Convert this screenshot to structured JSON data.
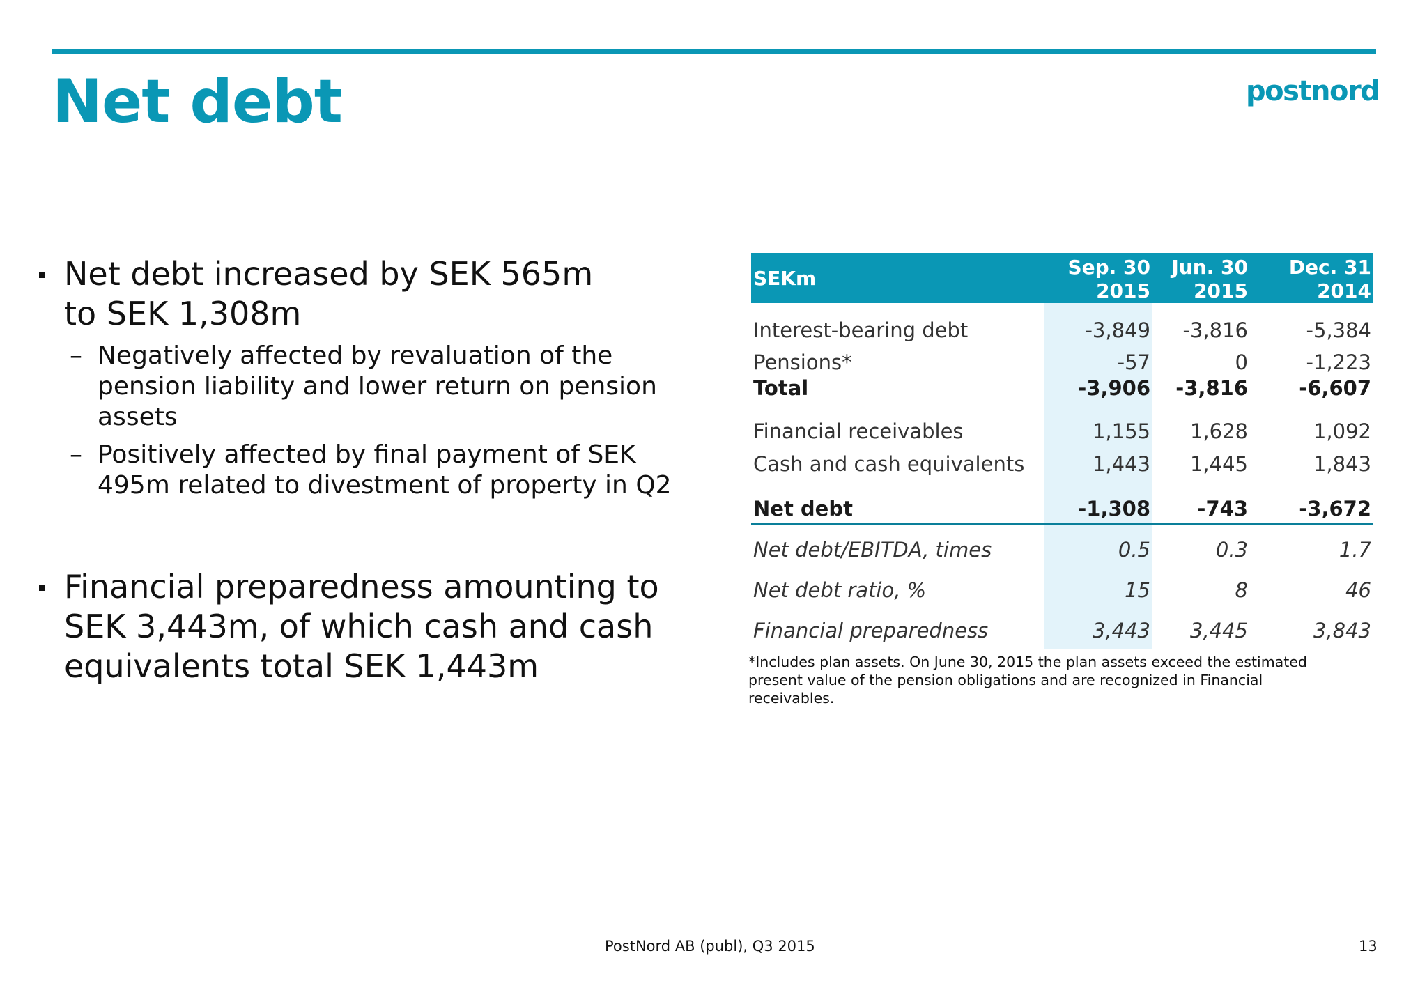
{
  "header": {
    "title": "Net debt",
    "logo_text": "postnord",
    "accent_color": "#0a97b5"
  },
  "bullets": [
    {
      "text": "Net debt increased by SEK 565m to SEK 1,308m",
      "line1": "Net debt increased by SEK 565m",
      "line2": "to SEK 1,308m",
      "sub": [
        {
          "line1": "Negatively affected by revaluation of the",
          "line2": "pension liability and lower return on pension",
          "line3": "assets"
        },
        {
          "line1": "Positively affected by final payment of SEK",
          "line2": "495m related to divestment of property in Q2"
        }
      ]
    },
    {
      "line1": "Financial preparedness amounting to",
      "line2": "SEK 3,443m, of which cash and cash",
      "line3": "equivalents total SEK 1,443m"
    }
  ],
  "table": {
    "unit_label": "SEKm",
    "columns": [
      {
        "line1": "Sep. 30",
        "line2": "2015"
      },
      {
        "line1": "Jun. 30",
        "line2": "2015"
      },
      {
        "line1": "Dec. 31",
        "line2": "2014"
      }
    ],
    "rows": [
      {
        "label": "Interest-bearing debt",
        "values": [
          "-3,849",
          "-3,816",
          "-5,384"
        ]
      },
      {
        "label": "Pensions*",
        "values": [
          "-57",
          "0",
          "-1,223"
        ]
      },
      {
        "label": "Total",
        "values": [
          "-3,906",
          "-3,816",
          "-6,607"
        ]
      },
      {
        "label": "Financial receivables",
        "values": [
          "1,155",
          "1,628",
          "1,092"
        ]
      },
      {
        "label": "Cash and cash equivalents",
        "values": [
          "1,443",
          "1,445",
          "1,843"
        ]
      },
      {
        "label": "Net debt",
        "values": [
          "-1,308",
          "-743",
          "-3,672"
        ]
      },
      {
        "label": "Net debt/EBITDA, times",
        "values": [
          "0.5",
          "0.3",
          "1.7"
        ]
      },
      {
        "label": "Net debt ratio, %",
        "values": [
          "15",
          "8",
          "46"
        ]
      },
      {
        "label": "Financial preparedness",
        "values": [
          "3,443",
          "3,445",
          "3,843"
        ]
      }
    ],
    "footnote_line1": "*Includes plan assets. On June 30, 2015 the plan assets exceed the estimated",
    "footnote_line2": "present value of the pension obligations and are recognized in Financial",
    "footnote_line3": "receivables."
  },
  "footer": {
    "text": "PostNord AB (publ), Q3 2015",
    "page_number": "13"
  }
}
